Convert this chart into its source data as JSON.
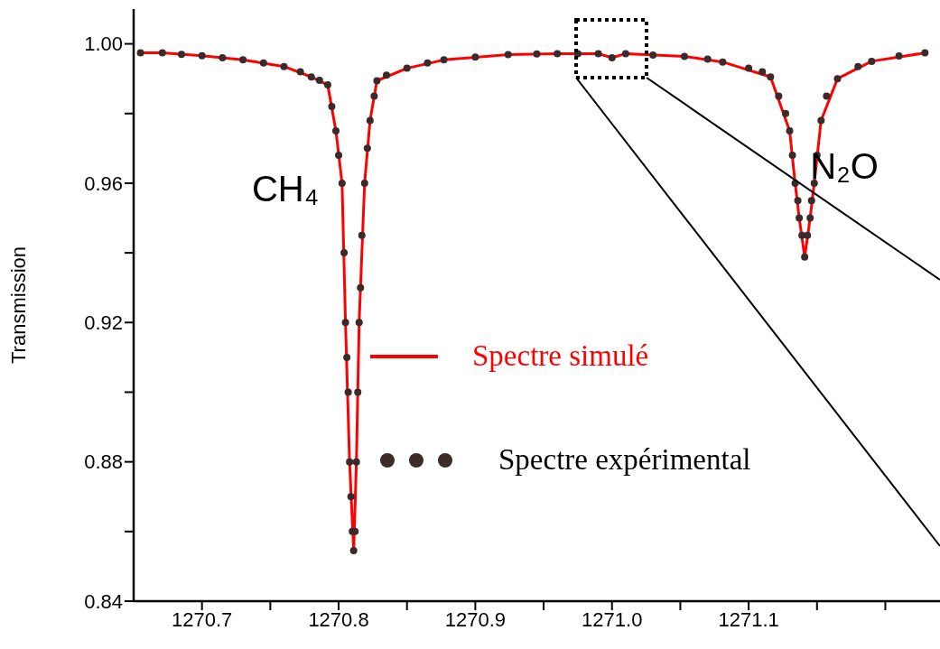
{
  "chart_data": {
    "type": "line",
    "ylabel": "Transmission",
    "xlim": [
      1270.65,
      1271.24
    ],
    "ylim": [
      0.84,
      1.01
    ],
    "xticks": [
      {
        "value": 1270.7,
        "label": "1270.7"
      },
      {
        "value": 1270.75,
        "label": null
      },
      {
        "value": 1270.8,
        "label": "1270.8"
      },
      {
        "value": 1270.85,
        "label": null
      },
      {
        "value": 1270.9,
        "label": "1270.9"
      },
      {
        "value": 1270.95,
        "label": null
      },
      {
        "value": 1271.0,
        "label": "1271.0"
      },
      {
        "value": 1271.05,
        "label": null
      },
      {
        "value": 1271.1,
        "label": "1271.1"
      },
      {
        "value": 1271.15,
        "label": null
      },
      {
        "value": 1271.2,
        "label": null
      }
    ],
    "yticks": [
      {
        "value": 0.84,
        "label": "0.84"
      },
      {
        "value": 0.86,
        "label": null
      },
      {
        "value": 0.88,
        "label": "0.88"
      },
      {
        "value": 0.9,
        "label": null
      },
      {
        "value": 0.92,
        "label": "0.92"
      },
      {
        "value": 0.94,
        "label": null
      },
      {
        "value": 0.96,
        "label": "0.96"
      },
      {
        "value": 0.98,
        "label": null
      },
      {
        "value": 1.0,
        "label": "1.00"
      }
    ],
    "grid": false,
    "legend": "center",
    "annotations": [
      "CH₄",
      "N₂O"
    ],
    "series": [
      {
        "name": "Spectre expérimental",
        "type": "scatter",
        "marker": "circle",
        "color": "#3a2a2a",
        "x": [
          1270.655,
          1270.671,
          1270.685,
          1270.7,
          1270.715,
          1270.73,
          1270.745,
          1270.76,
          1270.772,
          1270.78,
          1270.786,
          1270.792,
          1270.795,
          1270.798,
          1270.8,
          1270.8025,
          1270.804,
          1270.805,
          1270.806,
          1270.807,
          1270.808,
          1270.809,
          1270.81,
          1270.811,
          1270.812,
          1270.813,
          1270.814,
          1270.815,
          1270.816,
          1270.817,
          1270.819,
          1270.821,
          1270.823,
          1270.826,
          1270.828,
          1270.835,
          1270.85,
          1270.865,
          1270.877,
          1270.9,
          1270.924,
          1270.945,
          1270.96,
          1270.975,
          1270.99,
          1271.0,
          1271.01,
          1271.03,
          1271.053,
          1271.07,
          1271.081,
          1271.1,
          1271.11,
          1271.116,
          1271.122,
          1271.127,
          1271.13,
          1271.132,
          1271.134,
          1271.136,
          1271.137,
          1271.139,
          1271.141,
          1271.143,
          1271.145,
          1271.146,
          1271.148,
          1271.15,
          1271.153,
          1271.157,
          1271.165,
          1271.18,
          1271.19,
          1271.21,
          1271.229
        ],
        "values": [
          0.9974,
          0.9974,
          0.997,
          0.9966,
          0.996,
          0.9954,
          0.9945,
          0.9935,
          0.992,
          0.9905,
          0.9895,
          0.9882,
          0.982,
          0.975,
          0.968,
          0.96,
          0.94,
          0.92,
          0.91,
          0.9,
          0.88,
          0.87,
          0.86,
          0.8545,
          0.86,
          0.88,
          0.9,
          0.92,
          0.93,
          0.945,
          0.96,
          0.97,
          0.978,
          0.985,
          0.9894,
          0.991,
          0.993,
          0.9945,
          0.9954,
          0.9962,
          0.9969,
          0.9971,
          0.9972,
          0.9972,
          0.9972,
          0.996,
          0.9972,
          0.9968,
          0.9964,
          0.9956,
          0.9948,
          0.993,
          0.992,
          0.9905,
          0.985,
          0.98,
          0.975,
          0.968,
          0.96,
          0.955,
          0.95,
          0.945,
          0.9388,
          0.945,
          0.95,
          0.955,
          0.96,
          0.968,
          0.978,
          0.985,
          0.99,
          0.9935,
          0.995,
          0.9965,
          0.9974
        ]
      },
      {
        "name": "Spectre simulé",
        "marker": "none",
        "line_style": "solid",
        "color": "#ff0000",
        "x": [
          1270.655,
          1270.671,
          1270.7,
          1270.73,
          1270.76,
          1270.78,
          1270.792,
          1270.798,
          1270.8025,
          1270.805,
          1270.808,
          1270.811,
          1270.813,
          1270.815,
          1270.819,
          1270.823,
          1270.828,
          1270.85,
          1270.877,
          1270.924,
          1270.96,
          1270.99,
          1271.0,
          1271.01,
          1271.053,
          1271.081,
          1271.116,
          1271.13,
          1271.134,
          1271.137,
          1271.141,
          1271.145,
          1271.148,
          1271.153,
          1271.165,
          1271.19,
          1271.229
        ],
        "values": [
          0.9974,
          0.9974,
          0.9966,
          0.9954,
          0.9935,
          0.9905,
          0.9882,
          0.975,
          0.96,
          0.92,
          0.88,
          0.8545,
          0.88,
          0.92,
          0.96,
          0.978,
          0.9894,
          0.993,
          0.9954,
          0.9969,
          0.9972,
          0.9972,
          0.996,
          0.9972,
          0.9964,
          0.9948,
          0.9905,
          0.975,
          0.96,
          0.95,
          0.9388,
          0.95,
          0.96,
          0.978,
          0.99,
          0.995,
          0.9974
        ]
      }
    ]
  }
}
